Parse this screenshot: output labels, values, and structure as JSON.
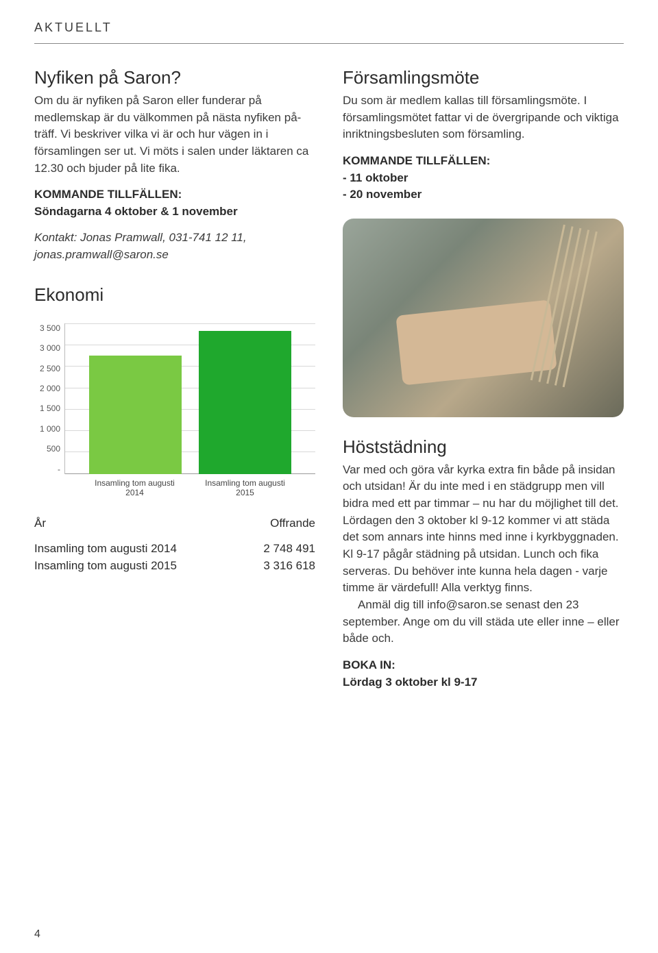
{
  "header": {
    "label": "AKTUELLT"
  },
  "left": {
    "nyfiken": {
      "title": "Nyfiken på Saron?",
      "body": "Om du är nyfiken på Saron eller funderar på medlemskap är du välkommen på nästa nyfiken på-träff. Vi beskriver vilka vi är och hur vägen in i församlingen ser ut. Vi möts i salen under läktaren ca 12.30 och bjuder på lite fika.",
      "kommande": "KOMMANDE TILLFÄLLEN:\nSöndagarna 4 oktober & 1 november",
      "kontakt": "Kontakt: Jonas Pramwall, 031-741 12 11, jonas.pramwall@saron.se"
    },
    "ekonomi": {
      "title": "Ekonomi",
      "chart": {
        "type": "bar",
        "ylim": [
          0,
          3500
        ],
        "ytick_step": 500,
        "yticks": [
          "3 500",
          "3 000",
          "2 500",
          "2 000",
          "1 500",
          "1 000",
          "500",
          "-"
        ],
        "categories": [
          "Insamling tom augusti 2014",
          "Insamling tom augusti 2015"
        ],
        "values": [
          2748,
          3317
        ],
        "bar_colors": [
          "#7ac943",
          "#1fa82d"
        ],
        "grid_color": "#d8d8d8",
        "axis_color": "#999",
        "label_fontsize": 12
      },
      "table": {
        "headers": [
          "År",
          "Offrande"
        ],
        "rows": [
          [
            "Insamling tom augusti 2014",
            "2 748 491"
          ],
          [
            "Insamling tom augusti 2015",
            "3 316 618"
          ]
        ]
      }
    }
  },
  "right": {
    "forsamling": {
      "title": "Församlingsmöte",
      "body": "Du som är medlem kallas till församlingsmöte. I församlingsmötet fattar vi de övergripande och viktiga inriktningsbesluten som församling.",
      "kommande": "KOMMANDE TILLFÄLLEN:\n- 11 oktober\n- 20 november"
    },
    "host": {
      "title": "Höststädning",
      "p1": "Var med och göra vår kyrka extra fin både på insidan och utsidan! Är du inte med i en städgrupp men vill bidra med ett par timmar – nu har du möjlighet till det.",
      "p2": "Lördagen den 3 oktober kl 9-12 kommer vi att städa det som annars inte hinns med inne i kyrkbyggnaden. Kl 9-17 pågår städning på utsidan. Lunch och fika serveras. Du behöver inte kunna hela dagen - varje timme är värdefull! Alla verktyg finns.",
      "p3": "Anmäl dig till info@saron.se senast den 23 september. Ange om du vill städa ute eller inne – eller både och.",
      "boka": "BOKA IN:\nLördag 3 oktober kl 9-17"
    }
  },
  "page_number": "4"
}
